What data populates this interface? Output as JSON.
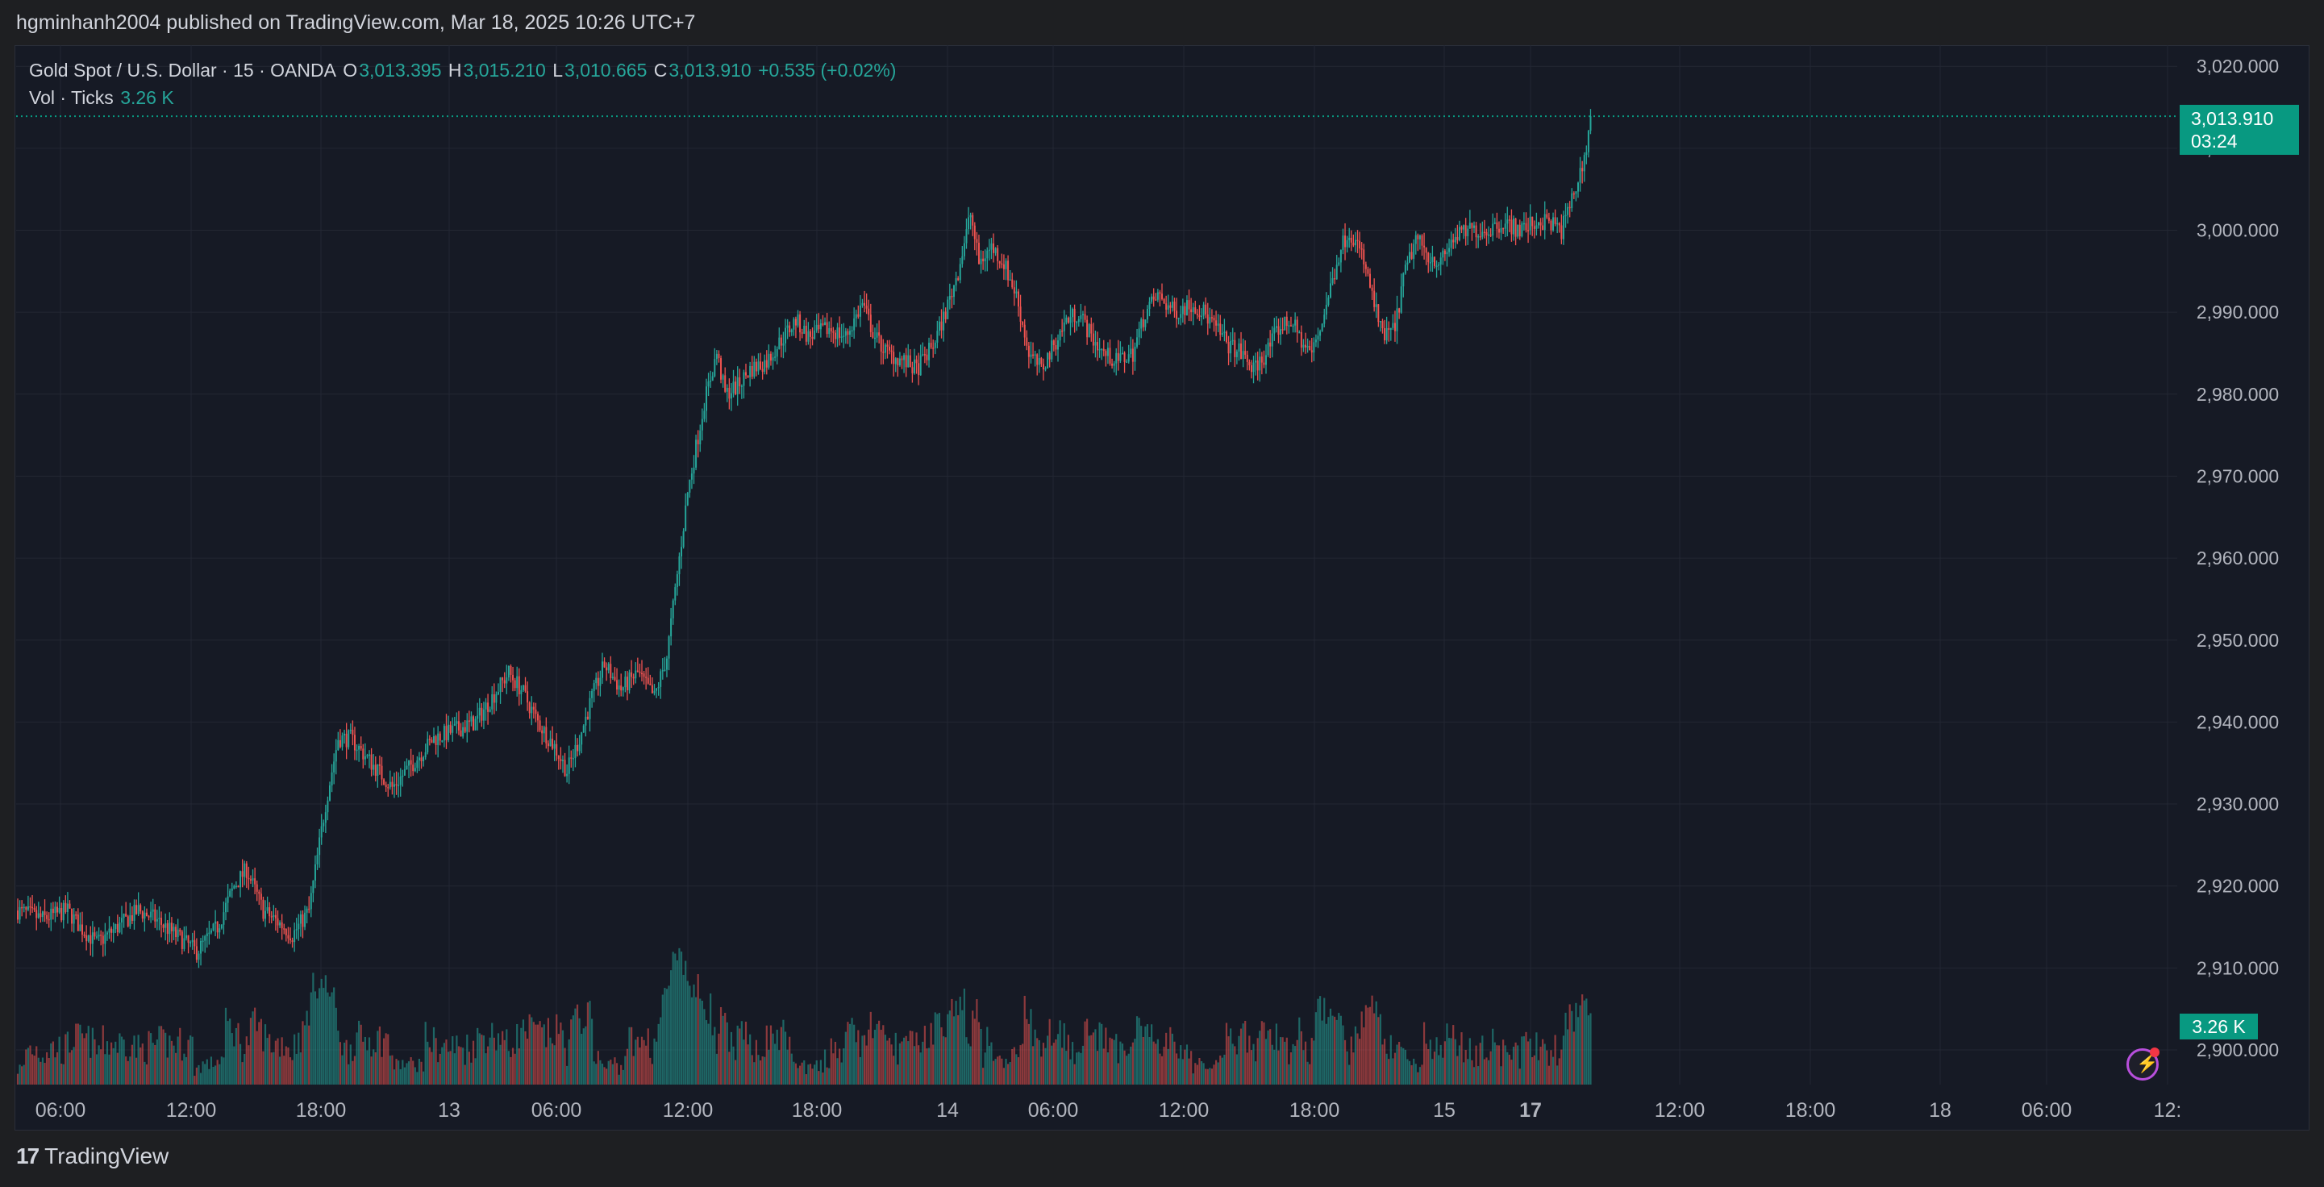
{
  "header": {
    "publisher": "hgminhanh2004 published on TradingView.com, Mar 18, 2025 10:26 UTC+7"
  },
  "legend": {
    "symbol": "Gold Spot / U.S. Dollar · 15 · OANDA",
    "o_label": "O",
    "o_value": "3,013.395",
    "h_label": "H",
    "h_value": "3,015.210",
    "l_label": "L",
    "l_value": "3,010.665",
    "c_label": "C",
    "c_value": "3,013.910",
    "change": "+0.535 (+0.02%)",
    "vol_label": "Vol · Ticks",
    "vol_value": "3.26 K"
  },
  "price_tag": {
    "price": "3,013.910",
    "countdown": "03:24"
  },
  "volume_tag": "3.26 K",
  "footer": {
    "brand": "TradingView"
  },
  "colors": {
    "up": "#26a69a",
    "down": "#ef5350",
    "background": "#161a25",
    "grid": "#232733",
    "accent": "#089981"
  },
  "chart_data": {
    "type": "candlestick",
    "y_axis_ticks": [
      "3,020.000",
      "3,010.000",
      "3,000.000",
      "2,990.000",
      "2,980.000",
      "2,970.000",
      "2,960.000",
      "2,950.000",
      "2,940.000",
      "2,930.000",
      "2,920.000",
      "2,910.000",
      "2,900.000"
    ],
    "x_axis_ticks": [
      "06:00",
      "12:00",
      "18:00",
      "13",
      "06:00",
      "12:00",
      "18:00",
      "14",
      "06:00",
      "12:00",
      "18:00",
      "15",
      "17",
      "12:00",
      "18:00",
      "18",
      "06:00",
      "12:"
    ],
    "ylim": [
      2896,
      3023
    ],
    "last_price": 3013.91,
    "close_path": [
      [
        0,
        2917
      ],
      [
        12,
        2916
      ],
      [
        24,
        2917
      ],
      [
        30,
        2915
      ],
      [
        38,
        2913
      ],
      [
        48,
        2915
      ],
      [
        58,
        2917
      ],
      [
        66,
        2916
      ],
      [
        76,
        2914
      ],
      [
        86,
        2912
      ],
      [
        96,
        2915
      ],
      [
        104,
        2920
      ],
      [
        110,
        2922
      ],
      [
        118,
        2917
      ],
      [
        128,
        2915
      ],
      [
        132,
        2914
      ],
      [
        140,
        2917
      ],
      [
        148,
        2930
      ],
      [
        154,
        2938
      ],
      [
        160,
        2938
      ],
      [
        170,
        2935
      ],
      [
        180,
        2932
      ],
      [
        190,
        2935
      ],
      [
        200,
        2938
      ],
      [
        210,
        2939
      ],
      [
        220,
        2940
      ],
      [
        228,
        2943
      ],
      [
        236,
        2946
      ],
      [
        242,
        2944
      ],
      [
        250,
        2940
      ],
      [
        258,
        2937
      ],
      [
        264,
        2934
      ],
      [
        270,
        2938
      ],
      [
        276,
        2943
      ],
      [
        282,
        2947
      ],
      [
        290,
        2944
      ],
      [
        298,
        2946
      ],
      [
        306,
        2943
      ],
      [
        312,
        2948
      ],
      [
        316,
        2956
      ],
      [
        322,
        2968
      ],
      [
        330,
        2979
      ],
      [
        336,
        2985
      ],
      [
        340,
        2980
      ],
      [
        346,
        2981
      ],
      [
        352,
        2983
      ],
      [
        360,
        2984
      ],
      [
        368,
        2987
      ],
      [
        374,
        2989
      ],
      [
        380,
        2987
      ],
      [
        390,
        2988
      ],
      [
        398,
        2987
      ],
      [
        406,
        2991
      ],
      [
        412,
        2987
      ],
      [
        418,
        2985
      ],
      [
        426,
        2984
      ],
      [
        432,
        2983
      ],
      [
        440,
        2986
      ],
      [
        446,
        2990
      ],
      [
        452,
        2995
      ],
      [
        458,
        3002
      ],
      [
        462,
        2996
      ],
      [
        468,
        2998
      ],
      [
        474,
        2996
      ],
      [
        480,
        2992
      ],
      [
        486,
        2985
      ],
      [
        492,
        2983
      ],
      [
        498,
        2986
      ],
      [
        504,
        2989
      ],
      [
        510,
        2990
      ],
      [
        516,
        2987
      ],
      [
        522,
        2985
      ],
      [
        528,
        2984
      ],
      [
        536,
        2985
      ],
      [
        542,
        2990
      ],
      [
        548,
        2992
      ],
      [
        556,
        2990
      ],
      [
        564,
        2991
      ],
      [
        570,
        2990
      ],
      [
        576,
        2988
      ],
      [
        582,
        2986
      ],
      [
        588,
        2985
      ],
      [
        594,
        2983
      ],
      [
        600,
        2985
      ],
      [
        606,
        2988
      ],
      [
        612,
        2989
      ],
      [
        618,
        2986
      ],
      [
        622,
        2985
      ],
      [
        626,
        2988
      ],
      [
        632,
        2994
      ],
      [
        636,
        2998
      ],
      [
        640,
        3000
      ],
      [
        646,
        2997
      ],
      [
        652,
        2991
      ],
      [
        656,
        2987
      ],
      [
        662,
        2988
      ],
      [
        666,
        2994
      ],
      [
        672,
        2999
      ],
      [
        678,
        2997
      ],
      [
        684,
        2996
      ],
      [
        690,
        2999
      ],
      [
        698,
        3000
      ],
      [
        706,
        3000
      ],
      [
        714,
        3001
      ],
      [
        722,
        3000
      ],
      [
        730,
        3001
      ],
      [
        736,
        3001
      ],
      [
        742,
        3000
      ],
      [
        746,
        3003
      ],
      [
        750,
        3006
      ],
      [
        754,
        3010
      ],
      [
        756,
        3013.91
      ]
    ]
  }
}
